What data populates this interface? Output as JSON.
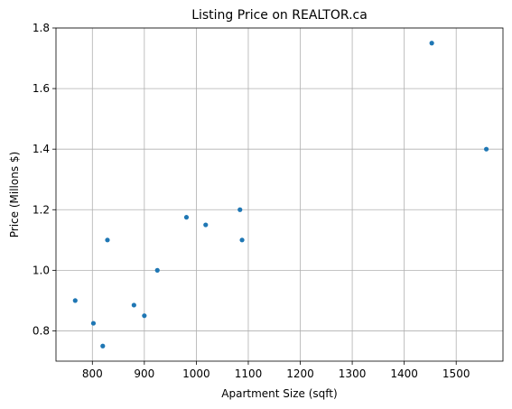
{
  "chart_data": {
    "type": "scatter",
    "title": "Listing Price on REALTOR.ca",
    "xlabel": "Apartment Size (sqft)",
    "ylabel": "Price (Millons $)",
    "xlim": [
      730,
      1590
    ],
    "ylim": [
      0.7,
      1.8
    ],
    "xticks": [
      800,
      900,
      1000,
      1100,
      1200,
      1300,
      1400,
      1500
    ],
    "xtick_labels": [
      "800",
      "900",
      "1000",
      "1100",
      "1200",
      "1300",
      "1400",
      "1500"
    ],
    "yticks": [
      0.8,
      1.0,
      1.2,
      1.4,
      1.6,
      1.8
    ],
    "ytick_labels": [
      "0.8",
      "1.0",
      "1.2",
      "1.4",
      "1.6",
      "1.8"
    ],
    "grid": true,
    "marker_color": "#1f77b4",
    "points": [
      {
        "x": 767,
        "y": 0.9
      },
      {
        "x": 802,
        "y": 0.825
      },
      {
        "x": 820,
        "y": 0.75
      },
      {
        "x": 829,
        "y": 1.1
      },
      {
        "x": 880,
        "y": 0.885
      },
      {
        "x": 900,
        "y": 0.85
      },
      {
        "x": 925,
        "y": 1.0
      },
      {
        "x": 981,
        "y": 1.175
      },
      {
        "x": 1018,
        "y": 1.15
      },
      {
        "x": 1084,
        "y": 1.2
      },
      {
        "x": 1088,
        "y": 1.1
      },
      {
        "x": 1453,
        "y": 1.75
      },
      {
        "x": 1558,
        "y": 1.4
      }
    ]
  }
}
